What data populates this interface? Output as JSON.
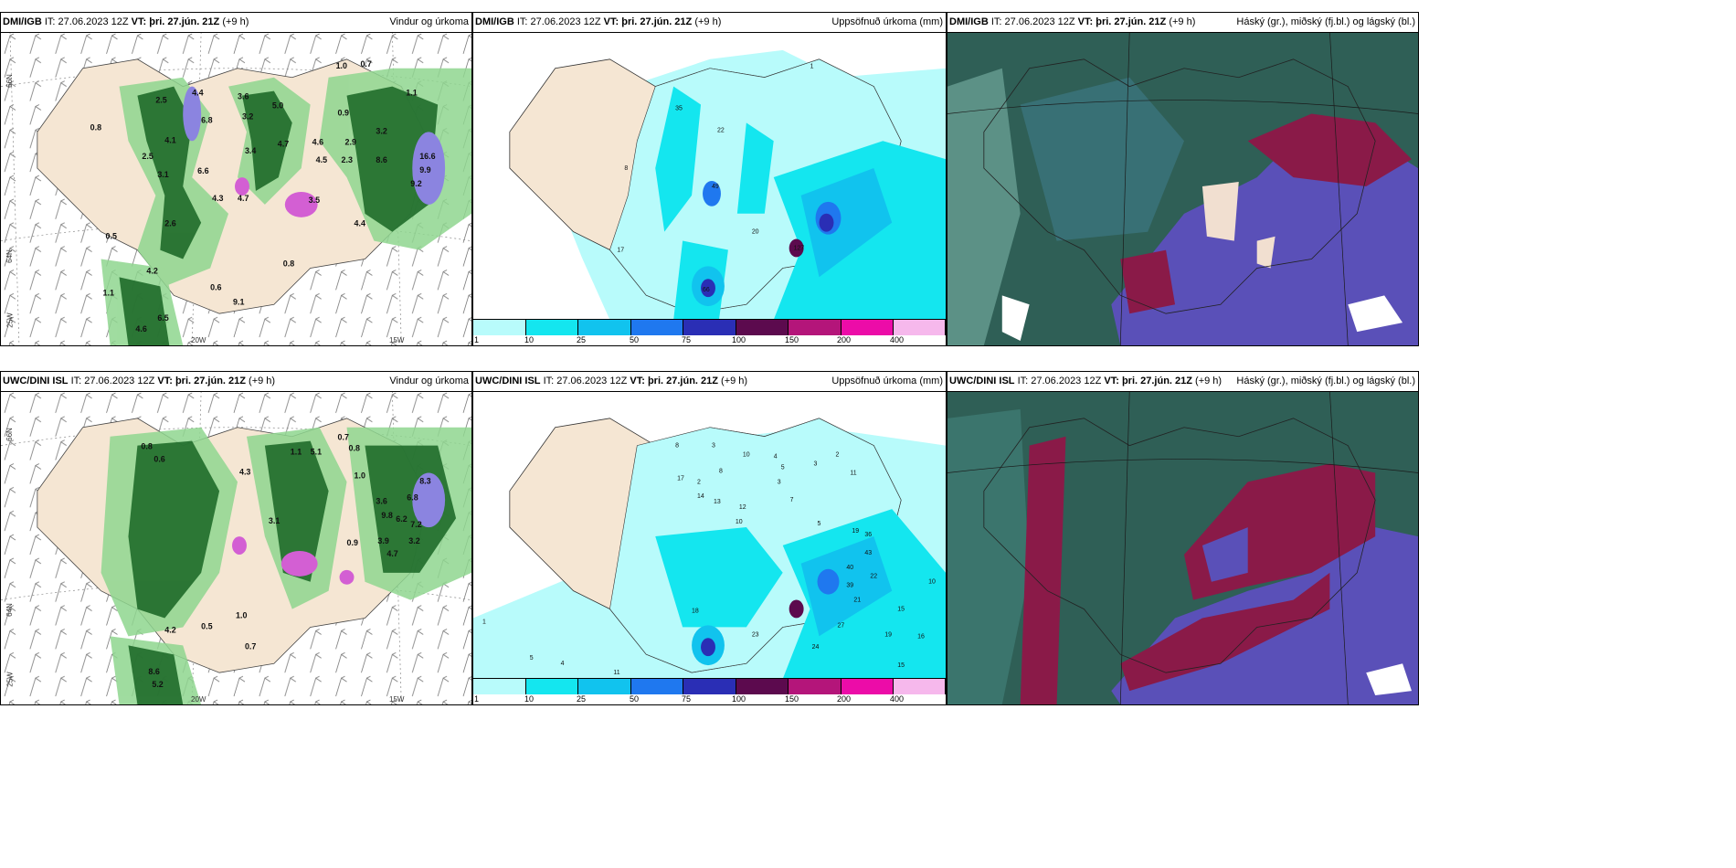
{
  "panels": [
    {
      "model": "DMI/IGB",
      "it_label": "IT:",
      "it": "27.06.2023 12Z",
      "vt_label": "VT:",
      "vt": "þri. 27.jún. 21Z",
      "lead": "(+9 h)",
      "title": "Vindur og úrkoma"
    },
    {
      "model": "DMI/IGB",
      "it_label": "IT:",
      "it": "27.06.2023 12Z",
      "vt_label": "VT:",
      "vt": "þri. 27.jún. 21Z",
      "lead": "(+9 h)",
      "title": "Uppsöfnuð úrkoma (mm)"
    },
    {
      "model": "DMI/IGB",
      "it_label": "IT:",
      "it": "27.06.2023 12Z",
      "vt_label": "VT:",
      "vt": "þri. 27.jún. 21Z",
      "lead": "(+9 h)",
      "title": "Háský (gr.), miðský (fj.bl.) og lágský (bl.)"
    },
    {
      "model": "UWC/DINI ISL",
      "it_label": "IT:",
      "it": "27.06.2023 12Z",
      "vt_label": "VT:",
      "vt": "þri. 27.jún. 21Z",
      "lead": "(+9 h)",
      "title": "Vindur og úrkoma"
    },
    {
      "model": "UWC/DINI ISL",
      "it_label": "IT:",
      "it": "27.06.2023 12Z",
      "vt_label": "VT:",
      "vt": "þri. 27.jún. 21Z",
      "lead": "(+9 h)",
      "title": "Uppsöfnuð úrkoma (mm)"
    },
    {
      "model": "UWC/DINI ISL",
      "it_label": "IT:",
      "it": "27.06.2023 12Z",
      "vt_label": "VT:",
      "vt": "þri. 27.jún. 21Z",
      "lead": "(+9 h)",
      "title": "Háský (gr.), miðský (fj.bl.) og lágský (bl.)"
    }
  ],
  "axis_labels": {
    "lat_66": "66N",
    "lat_64": "64N",
    "lon_25": "25W",
    "lon_20": "20W",
    "lon_15": "15W"
  },
  "colorbar": {
    "ticks": [
      "1",
      "10",
      "25",
      "50",
      "75",
      "100",
      "150",
      "200",
      "400"
    ],
    "colors": [
      "#b8fbfb",
      "#14e6ef",
      "#11c3ee",
      "#1f78ef",
      "#2a2eb5",
      "#5c0a4e",
      "#b4157a",
      "#ec0ca8",
      "#f6b8ec"
    ]
  },
  "wind_labels_dmi": [
    "1.0",
    "0.7",
    "2.5",
    "4.4",
    "3.6",
    "5.0",
    "1.1",
    "0.8",
    "6.8",
    "3.2",
    "0.9",
    "4.1",
    "3.4",
    "4.7",
    "4.6",
    "3.2",
    "2.5",
    "16.6",
    "2.9",
    "4.5",
    "2.3",
    "8.6",
    "6.6",
    "3.1",
    "9.9",
    "4.3",
    "4.7",
    "3.5",
    "9.2",
    "2.6",
    "4.4",
    "0.5",
    "0.8",
    "4.2",
    "0.6",
    "9.1",
    "1.1",
    "4.6",
    "6.5"
  ],
  "precip_labels_dmi": [
    "1",
    "35",
    "22",
    "8",
    "49",
    "20",
    "17",
    "127",
    "66"
  ],
  "wind_labels_uwc": [
    "0.7",
    "0.8",
    "0.6",
    "0.8",
    "4.3",
    "5.1",
    "1.1",
    "0.9",
    "1.0",
    "8.3",
    "6.8",
    "3.6",
    "9.8",
    "6.2",
    "7.2",
    "4.7",
    "3.9",
    "3.2",
    "0.5",
    "1.0",
    "0.7",
    "4.2",
    "8.6",
    "5.2",
    "3.1"
  ],
  "precip_labels_uwc": [
    "3",
    "2",
    "3",
    "10",
    "4",
    "5",
    "3",
    "2",
    "11",
    "8",
    "17",
    "14",
    "13",
    "12",
    "10",
    "8",
    "7",
    "5",
    "19",
    "36",
    "43",
    "40",
    "22",
    "39",
    "21",
    "15",
    "27",
    "24",
    "18",
    "1",
    "5",
    "4",
    "11",
    "23",
    "19",
    "16",
    "15",
    "10"
  ],
  "colors": {
    "land": "#f5e6d3",
    "ocean_cyan": "#b8fbfb",
    "cloud_dark": "#2f5f56",
    "cloud_purple": "#5a50b8",
    "cloud_maroon": "#8a1a48"
  }
}
